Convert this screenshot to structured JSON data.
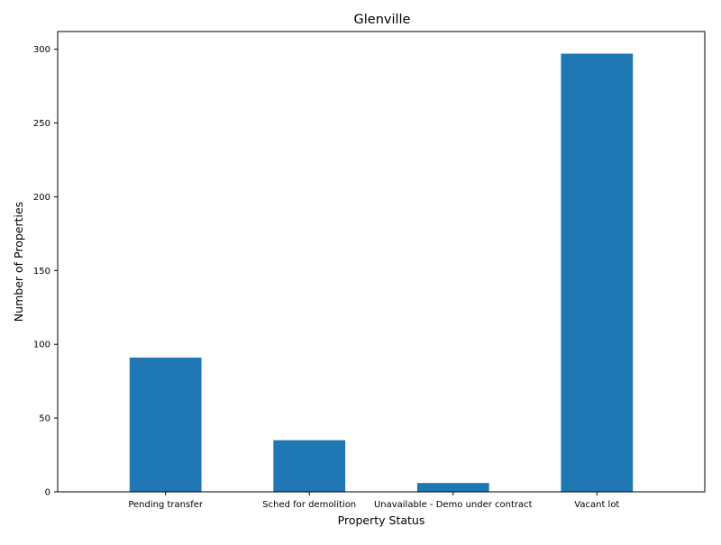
{
  "chart_data": {
    "type": "bar",
    "title": "Glenville",
    "xlabel": "Property Status",
    "ylabel": "Number of Properties",
    "categories": [
      "Pending transfer",
      "Sched for demolition",
      "Unavailable - Demo under contract",
      "Vacant lot"
    ],
    "values": [
      91,
      35,
      6,
      297
    ],
    "ylim": [
      0,
      312
    ],
    "yticks": [
      0,
      50,
      100,
      150,
      200,
      250,
      300
    ],
    "grid": false,
    "bar_color": "#1f77b4"
  }
}
